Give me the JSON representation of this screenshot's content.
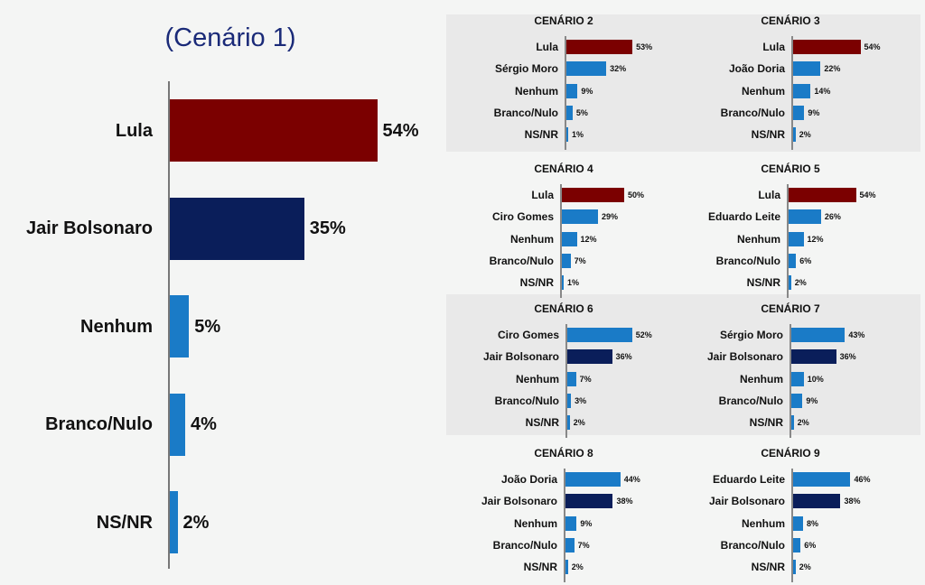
{
  "colors": {
    "lula": "#7b0000",
    "bolsonaro": "#0a1e5a",
    "other": "#1a7bc7",
    "background": "#f4f5f4"
  },
  "chart_data": [
    {
      "type": "bar",
      "title": "(Cenário 1)",
      "categories": [
        "Lula",
        "Jair Bolsonaro",
        "Nenhum",
        "Branco/Nulo",
        "NS/NR"
      ],
      "values": [
        54,
        35,
        5,
        4,
        2
      ],
      "value_labels": [
        "54%",
        "35%",
        "5%",
        "4%",
        "2%"
      ],
      "bar_colors": [
        "lula",
        "bolsonaro",
        "other",
        "other",
        "other"
      ],
      "orientation": "horizontal"
    },
    {
      "type": "bar",
      "title": "CENÁRIO 2",
      "categories": [
        "Lula",
        "Sérgio Moro",
        "Nenhum",
        "Branco/Nulo",
        "NS/NR"
      ],
      "values": [
        53,
        32,
        9,
        5,
        1
      ],
      "value_labels": [
        "53%",
        "32%",
        "9%",
        "5%",
        "1%"
      ],
      "bar_colors": [
        "lula",
        "other",
        "other",
        "other",
        "other"
      ]
    },
    {
      "type": "bar",
      "title": "CENÁRIO 3",
      "categories": [
        "Lula",
        "João Doria",
        "Nenhum",
        "Branco/Nulo",
        "NS/NR"
      ],
      "values": [
        54,
        22,
        14,
        9,
        2
      ],
      "value_labels": [
        "54%",
        "22%",
        "14%",
        "9%",
        "2%"
      ],
      "bar_colors": [
        "lula",
        "other",
        "other",
        "other",
        "other"
      ]
    },
    {
      "type": "bar",
      "title": "CENÁRIO 4",
      "categories": [
        "Lula",
        "Ciro Gomes",
        "Nenhum",
        "Branco/Nulo",
        "NS/NR"
      ],
      "values": [
        50,
        29,
        12,
        7,
        1
      ],
      "value_labels": [
        "50%",
        "29%",
        "12%",
        "7%",
        "1%"
      ],
      "bar_colors": [
        "lula",
        "other",
        "other",
        "other",
        "other"
      ]
    },
    {
      "type": "bar",
      "title": "CENÁRIO 5",
      "categories": [
        "Lula",
        "Eduardo Leite",
        "Nenhum",
        "Branco/Nulo",
        "NS/NR"
      ],
      "values": [
        54,
        26,
        12,
        6,
        2
      ],
      "value_labels": [
        "54%",
        "26%",
        "12%",
        "6%",
        "2%"
      ],
      "bar_colors": [
        "lula",
        "other",
        "other",
        "other",
        "other"
      ]
    },
    {
      "type": "bar",
      "title": "CENÁRIO 6",
      "categories": [
        "Ciro Gomes",
        "Jair Bolsonaro",
        "Nenhum",
        "Branco/Nulo",
        "NS/NR"
      ],
      "values": [
        52,
        36,
        7,
        3,
        2
      ],
      "value_labels": [
        "52%",
        "36%",
        "7%",
        "3%",
        "2%"
      ],
      "bar_colors": [
        "other",
        "bolsonaro",
        "other",
        "other",
        "other"
      ]
    },
    {
      "type": "bar",
      "title": "CENÁRIO 7",
      "categories": [
        "Sérgio Moro",
        "Jair Bolsonaro",
        "Nenhum",
        "Branco/Nulo",
        "NS/NR"
      ],
      "values": [
        43,
        36,
        10,
        9,
        2
      ],
      "value_labels": [
        "43%",
        "36%",
        "10%",
        "9%",
        "2%"
      ],
      "bar_colors": [
        "other",
        "bolsonaro",
        "other",
        "other",
        "other"
      ]
    },
    {
      "type": "bar",
      "title": "CENÁRIO 8",
      "categories": [
        "João Doria",
        "Jair Bolsonaro",
        "Nenhum",
        "Branco/Nulo",
        "NS/NR"
      ],
      "values": [
        44,
        38,
        9,
        7,
        2
      ],
      "value_labels": [
        "44%",
        "38%",
        "9%",
        "7%",
        "2%"
      ],
      "bar_colors": [
        "other",
        "bolsonaro",
        "other",
        "other",
        "other"
      ]
    },
    {
      "type": "bar",
      "title": "CENÁRIO 9",
      "categories": [
        "Eduardo Leite",
        "Jair Bolsonaro",
        "Nenhum",
        "Branco/Nulo",
        "NS/NR"
      ],
      "values": [
        46,
        38,
        8,
        6,
        2
      ],
      "value_labels": [
        "46%",
        "38%",
        "8%",
        "6%",
        "2%"
      ],
      "bar_colors": [
        "other",
        "bolsonaro",
        "other",
        "other",
        "other"
      ]
    }
  ]
}
